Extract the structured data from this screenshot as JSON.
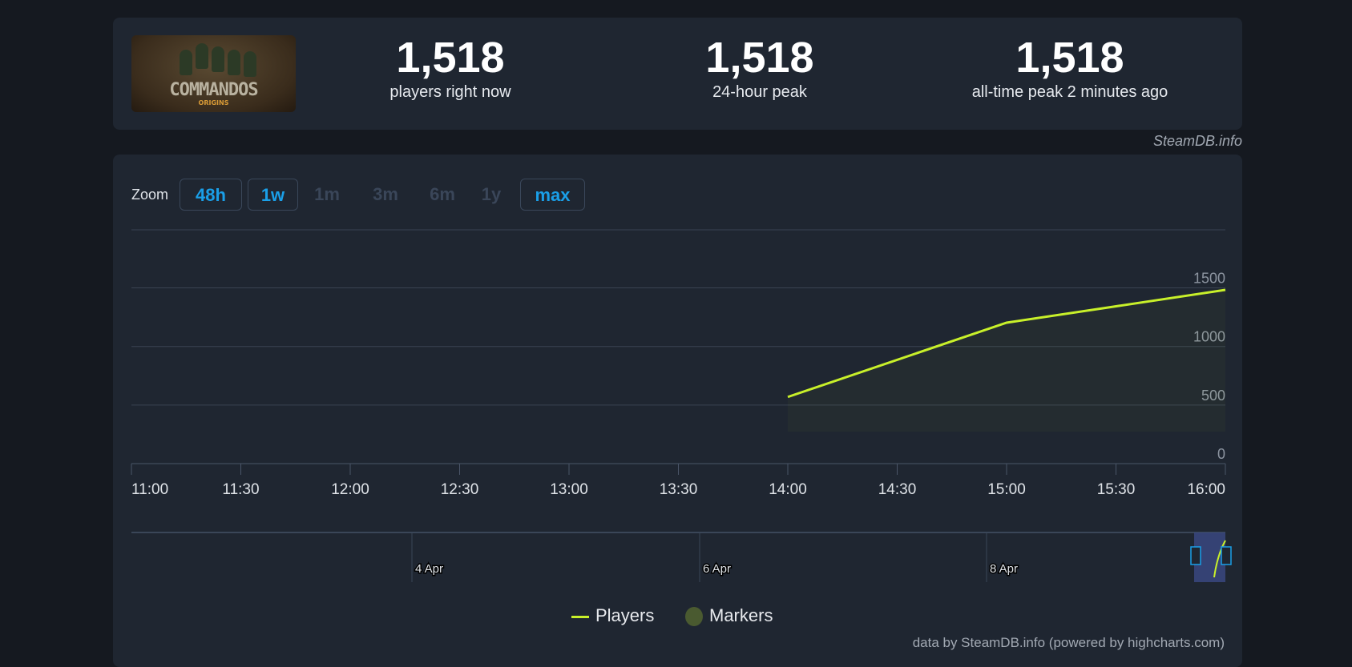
{
  "game": {
    "title_logo": "COMMANDOS",
    "subtitle_logo": "ORIGINS"
  },
  "stats": [
    {
      "value": "1,518",
      "label": "players right now"
    },
    {
      "value": "1,518",
      "label": "24-hour peak"
    },
    {
      "value": "1,518",
      "label": "all-time peak 2 minutes ago"
    }
  ],
  "source": "SteamDB.info",
  "zoom": {
    "label": "Zoom",
    "buttons": [
      {
        "label": "48h",
        "enabled": true
      },
      {
        "label": "1w",
        "enabled": true
      },
      {
        "label": "1m",
        "enabled": false
      },
      {
        "label": "3m",
        "enabled": false
      },
      {
        "label": "6m",
        "enabled": false
      },
      {
        "label": "1y",
        "enabled": false
      },
      {
        "label": "max",
        "enabled": true
      }
    ]
  },
  "legend": {
    "players": "Players",
    "markers": "Markers"
  },
  "credit": "data by SteamDB.info (powered by highcharts.com)",
  "colors": {
    "players": "#c8f02a",
    "markers": "#4a5a30",
    "accent": "#1a9fe8"
  },
  "chart_data": {
    "type": "line",
    "x": [
      "14:00",
      "15:00",
      "16:00"
    ],
    "series": [
      {
        "name": "Players",
        "values": [
          569,
          1203,
          1483
        ]
      }
    ],
    "xticks": [
      "11:00",
      "11:30",
      "12:00",
      "12:30",
      "13:00",
      "13:30",
      "14:00",
      "14:30",
      "15:00",
      "15:30",
      "16:00"
    ],
    "yticks": [
      0,
      500,
      1000,
      1500
    ],
    "ylim": [
      0,
      2000
    ],
    "navigator_ticks": [
      "4 Apr",
      "6 Apr",
      "8 Apr"
    ],
    "legend": "bottom-center",
    "grid": true
  }
}
